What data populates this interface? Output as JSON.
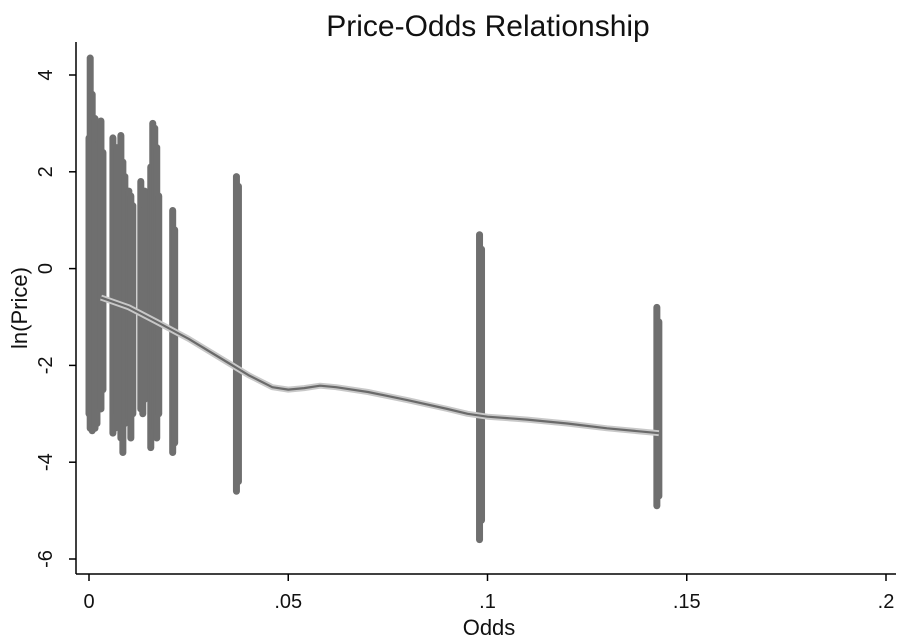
{
  "chart_data": {
    "type": "scatter",
    "title": "Price-Odds Relationship",
    "xlabel": "Odds",
    "ylabel": "ln(Price)",
    "xlim": [
      0,
      0.2
    ],
    "ylim": [
      -6,
      4
    ],
    "x_ticks": [
      {
        "value": 0,
        "label": "0"
      },
      {
        "value": 0.05,
        "label": ".05"
      },
      {
        "value": 0.1,
        "label": ".1"
      },
      {
        "value": 0.15,
        "label": ".15"
      },
      {
        "value": 0.2,
        "label": ".2"
      }
    ],
    "y_ticks": [
      {
        "value": -6,
        "label": "-6"
      },
      {
        "value": -4,
        "label": "-4"
      },
      {
        "value": -2,
        "label": "-2"
      },
      {
        "value": 0,
        "label": "0"
      },
      {
        "value": 2,
        "label": "2"
      },
      {
        "value": 4,
        "label": "4"
      }
    ],
    "grid": false,
    "marker_color": "#6f6f6f",
    "columns": [
      {
        "x": 0.0,
        "ymin": -3.0,
        "ymax": 2.7
      },
      {
        "x": 0.0003,
        "ymin": -3.3,
        "ymax": 4.35
      },
      {
        "x": 0.0008,
        "ymin": -3.35,
        "ymax": 3.6
      },
      {
        "x": 0.0015,
        "ymin": -3.3,
        "ymax": 3.1
      },
      {
        "x": 0.002,
        "ymin": -3.2,
        "ymax": 2.9
      },
      {
        "x": 0.0025,
        "ymin": -2.8,
        "ymax": 2.6
      },
      {
        "x": 0.003,
        "ymin": -2.9,
        "ymax": 3.05
      },
      {
        "x": 0.0035,
        "ymin": -2.5,
        "ymax": 2.4
      },
      {
        "x": 0.006,
        "ymin": -3.4,
        "ymax": 2.7
      },
      {
        "x": 0.0065,
        "ymin": -3.3,
        "ymax": 2.0
      },
      {
        "x": 0.007,
        "ymin": -3.0,
        "ymax": 2.5
      },
      {
        "x": 0.008,
        "ymin": -3.5,
        "ymax": 2.75
      },
      {
        "x": 0.0085,
        "ymin": -3.8,
        "ymax": 2.2
      },
      {
        "x": 0.009,
        "ymin": -3.2,
        "ymax": 1.9
      },
      {
        "x": 0.01,
        "ymin": -3.1,
        "ymax": 1.6
      },
      {
        "x": 0.0105,
        "ymin": -3.5,
        "ymax": 1.5
      },
      {
        "x": 0.011,
        "ymin": -3.0,
        "ymax": 1.3
      },
      {
        "x": 0.013,
        "ymin": -2.9,
        "ymax": 1.8
      },
      {
        "x": 0.0135,
        "ymin": -3.0,
        "ymax": 1.2
      },
      {
        "x": 0.014,
        "ymin": -2.7,
        "ymax": 1.6
      },
      {
        "x": 0.0155,
        "ymin": -3.7,
        "ymax": 2.1
      },
      {
        "x": 0.016,
        "ymin": -3.4,
        "ymax": 3.0
      },
      {
        "x": 0.0165,
        "ymin": -3.3,
        "ymax": 2.9
      },
      {
        "x": 0.017,
        "ymin": -3.5,
        "ymax": 2.5
      },
      {
        "x": 0.0175,
        "ymin": -3.0,
        "ymax": 1.5
      },
      {
        "x": 0.021,
        "ymin": -3.8,
        "ymax": 1.2
      },
      {
        "x": 0.0215,
        "ymin": -3.6,
        "ymax": 0.8
      },
      {
        "x": 0.037,
        "ymin": -4.6,
        "ymax": 1.9
      },
      {
        "x": 0.0375,
        "ymin": -4.4,
        "ymax": 1.7
      },
      {
        "x": 0.098,
        "ymin": -5.6,
        "ymax": 0.7
      },
      {
        "x": 0.0985,
        "ymin": -5.2,
        "ymax": 0.4
      },
      {
        "x": 0.1425,
        "ymin": -4.9,
        "ymax": -0.8
      },
      {
        "x": 0.143,
        "ymin": -4.7,
        "ymax": -1.1
      }
    ],
    "fit_line": [
      {
        "x": 0.003,
        "y": -0.6
      },
      {
        "x": 0.01,
        "y": -0.8
      },
      {
        "x": 0.017,
        "y": -1.1
      },
      {
        "x": 0.025,
        "y": -1.45
      },
      {
        "x": 0.035,
        "y": -1.95
      },
      {
        "x": 0.04,
        "y": -2.2
      },
      {
        "x": 0.046,
        "y": -2.45
      },
      {
        "x": 0.05,
        "y": -2.5
      },
      {
        "x": 0.054,
        "y": -2.47
      },
      {
        "x": 0.058,
        "y": -2.42
      },
      {
        "x": 0.062,
        "y": -2.45
      },
      {
        "x": 0.07,
        "y": -2.55
      },
      {
        "x": 0.08,
        "y": -2.72
      },
      {
        "x": 0.09,
        "y": -2.9
      },
      {
        "x": 0.095,
        "y": -3.0
      },
      {
        "x": 0.1,
        "y": -3.06
      },
      {
        "x": 0.11,
        "y": -3.12
      },
      {
        "x": 0.12,
        "y": -3.2
      },
      {
        "x": 0.13,
        "y": -3.3
      },
      {
        "x": 0.143,
        "y": -3.4
      }
    ]
  }
}
